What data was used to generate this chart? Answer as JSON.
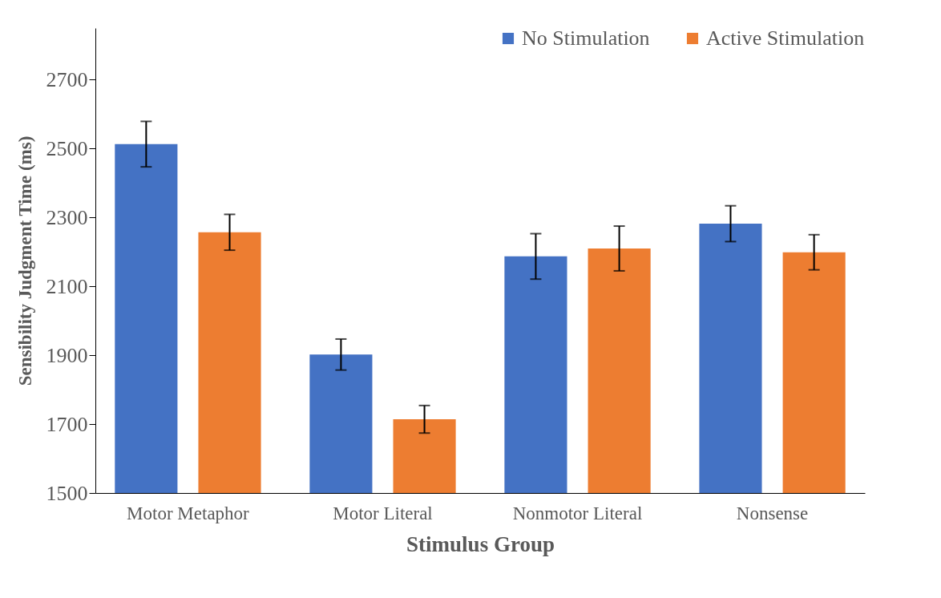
{
  "chart_data": {
    "type": "bar",
    "xlabel": "Stimulus Group",
    "ylabel": "Sensibility Judgment Time (ms)",
    "categories": [
      "Motor Metaphor",
      "Motor Literal",
      "Nonmotor Literal",
      "Nonsense"
    ],
    "series": [
      {
        "name": "No Stimulation",
        "color": "#4472c4",
        "values": [
          2513,
          1902,
          2187,
          2282
        ],
        "errors": [
          66,
          45,
          66,
          52
        ]
      },
      {
        "name": "Active Stimulation",
        "color": "#ed7d31",
        "values": [
          2257,
          1714,
          2210,
          2199
        ],
        "errors": [
          52,
          40,
          65,
          51
        ]
      }
    ],
    "ylim": [
      1500,
      2850
    ],
    "yticks": [
      1500,
      1700,
      1900,
      2100,
      2300,
      2500,
      2700
    ],
    "grid": false,
    "legend": "top right"
  }
}
